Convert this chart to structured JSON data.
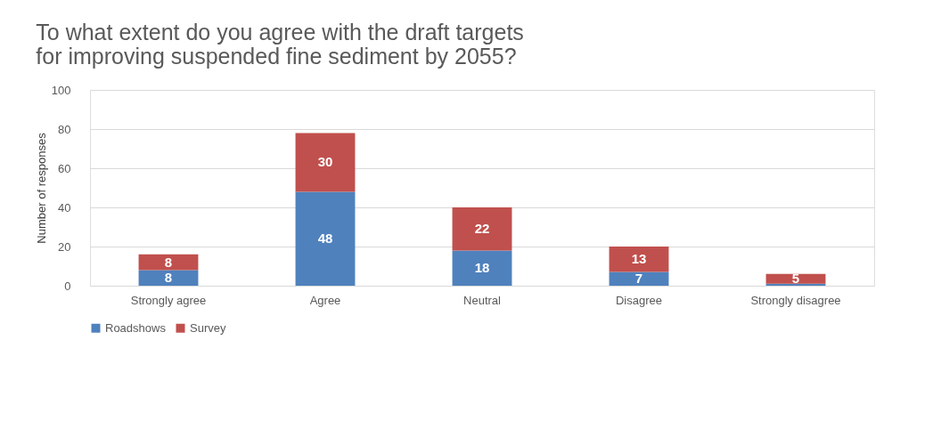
{
  "chart_data": {
    "type": "bar",
    "stacked": true,
    "title": [
      "To what extent do you agree with the draft targets",
      "for improving suspended fine sediment by 2055?"
    ],
    "ylabel": "Number of responses",
    "categories": [
      "Strongly agree",
      "Agree",
      "Neutral",
      "Disagree",
      "Strongly disagree"
    ],
    "series": [
      {
        "name": "Roadshows",
        "color": "#4f81bd",
        "values": [
          8,
          48,
          18,
          7,
          1
        ],
        "value_labels": [
          "8",
          "48",
          "18",
          "7",
          null
        ]
      },
      {
        "name": "Survey",
        "color": "#c0504d",
        "values": [
          8,
          30,
          22,
          13,
          5
        ],
        "value_labels": [
          "8",
          "30",
          "22",
          "13",
          "5"
        ]
      }
    ],
    "ylim": [
      0,
      100
    ],
    "yticks": [
      0,
      20,
      40,
      60,
      80,
      100
    ],
    "grid": "y",
    "legend": "bottom"
  }
}
